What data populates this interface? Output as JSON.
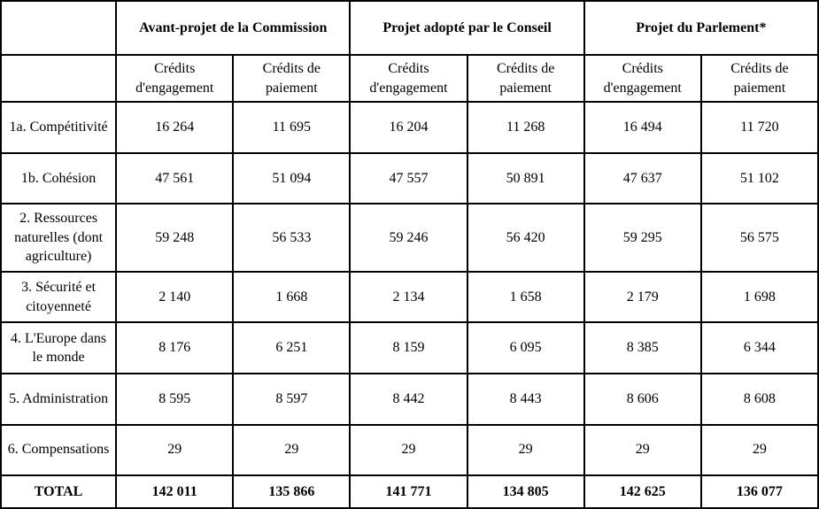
{
  "table": {
    "group_headers": [
      {
        "label": "Avant-projet de la Commission"
      },
      {
        "label": "Projet adopté par le Conseil"
      },
      {
        "label": "Projet du Parlement*"
      }
    ],
    "sub_headers": [
      "Crédits d'engagement",
      "Crédits de paiement",
      "Crédits d'engagement",
      "Crédits de paiement",
      "Crédits d'engagement",
      "Crédits de paiement"
    ],
    "rows": [
      {
        "label": "1a. Compétitivité",
        "values": [
          "16 264",
          "11 695",
          "16 204",
          "11 268",
          "16 494",
          "11 720"
        ]
      },
      {
        "label": "1b. Cohésion",
        "values": [
          "47 561",
          "51 094",
          "47 557",
          "50 891",
          "47 637",
          "51 102"
        ]
      },
      {
        "label": "2. Ressources naturelles (dont agriculture)",
        "values": [
          "59 248",
          "56 533",
          "59 246",
          "56 420",
          "59 295",
          "56 575"
        ]
      },
      {
        "label": "3. Sécurité et citoyenneté",
        "values": [
          "2 140",
          "1 668",
          "2 134",
          "1 658",
          "2 179",
          "1 698"
        ]
      },
      {
        "label": "4. L'Europe dans le monde",
        "values": [
          "8 176",
          "6 251",
          "8 159",
          "6 095",
          "8 385",
          "6 344"
        ]
      },
      {
        "label": "5. Administration",
        "values": [
          "8 595",
          "8 597",
          "8 442",
          "8 443",
          "8 606",
          "8 608"
        ]
      },
      {
        "label": "6. Compensations",
        "values": [
          "29",
          "29",
          "29",
          "29",
          "29",
          "29"
        ]
      }
    ],
    "total_row": {
      "label": "TOTAL",
      "values": [
        "142 011",
        "135 866",
        "141 771",
        "134 805",
        "142 625",
        "136 077"
      ]
    }
  },
  "colors": {
    "border": "#000000",
    "text": "#000000",
    "background": "#ffffff"
  }
}
